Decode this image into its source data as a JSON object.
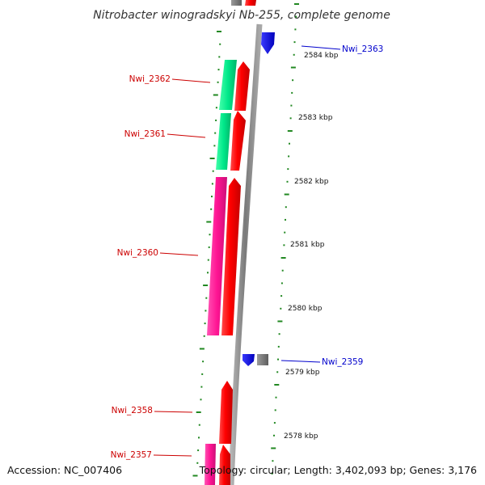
{
  "title": "Nitrobacter winogradskyi Nb-255, complete genome",
  "footer": {
    "accession": "Accession: NC_007406",
    "topology": "Topology: circular; Length: 3,402,093 bp; Genes: 3,176"
  },
  "scale": {
    "ticks": [
      "2584 kbp",
      "2583 kbp",
      "2582 kbp",
      "2581 kbp",
      "2580 kbp",
      "2579 kbp",
      "2578 kbp"
    ]
  },
  "genes": [
    {
      "id": "Nwi_2363",
      "color": "#0000dd",
      "track": "inner"
    },
    {
      "id": "Nwi_2362",
      "color": "#dd0000",
      "track": "outer"
    },
    {
      "id": "Nwi_2361",
      "color": "#dd0000",
      "track": "outer"
    },
    {
      "id": "Nwi_2360",
      "color": "#dd0000",
      "track": "outer"
    },
    {
      "id": "Nwi_2359",
      "color": "#0000dd",
      "track": "inner"
    },
    {
      "id": "Nwi_2358",
      "color": "#dd0000",
      "track": "outer"
    },
    {
      "id": "Nwi_2357",
      "color": "#dd0000",
      "track": "outer"
    }
  ],
  "colors": {
    "forward_cds": "#ff0000",
    "reverse_cds": "#0000ee",
    "cog_green": "#00ee88",
    "cog_pink": "#ff2299",
    "backbone": "#888888",
    "dots": "#228822",
    "other_feature": "#888888"
  }
}
